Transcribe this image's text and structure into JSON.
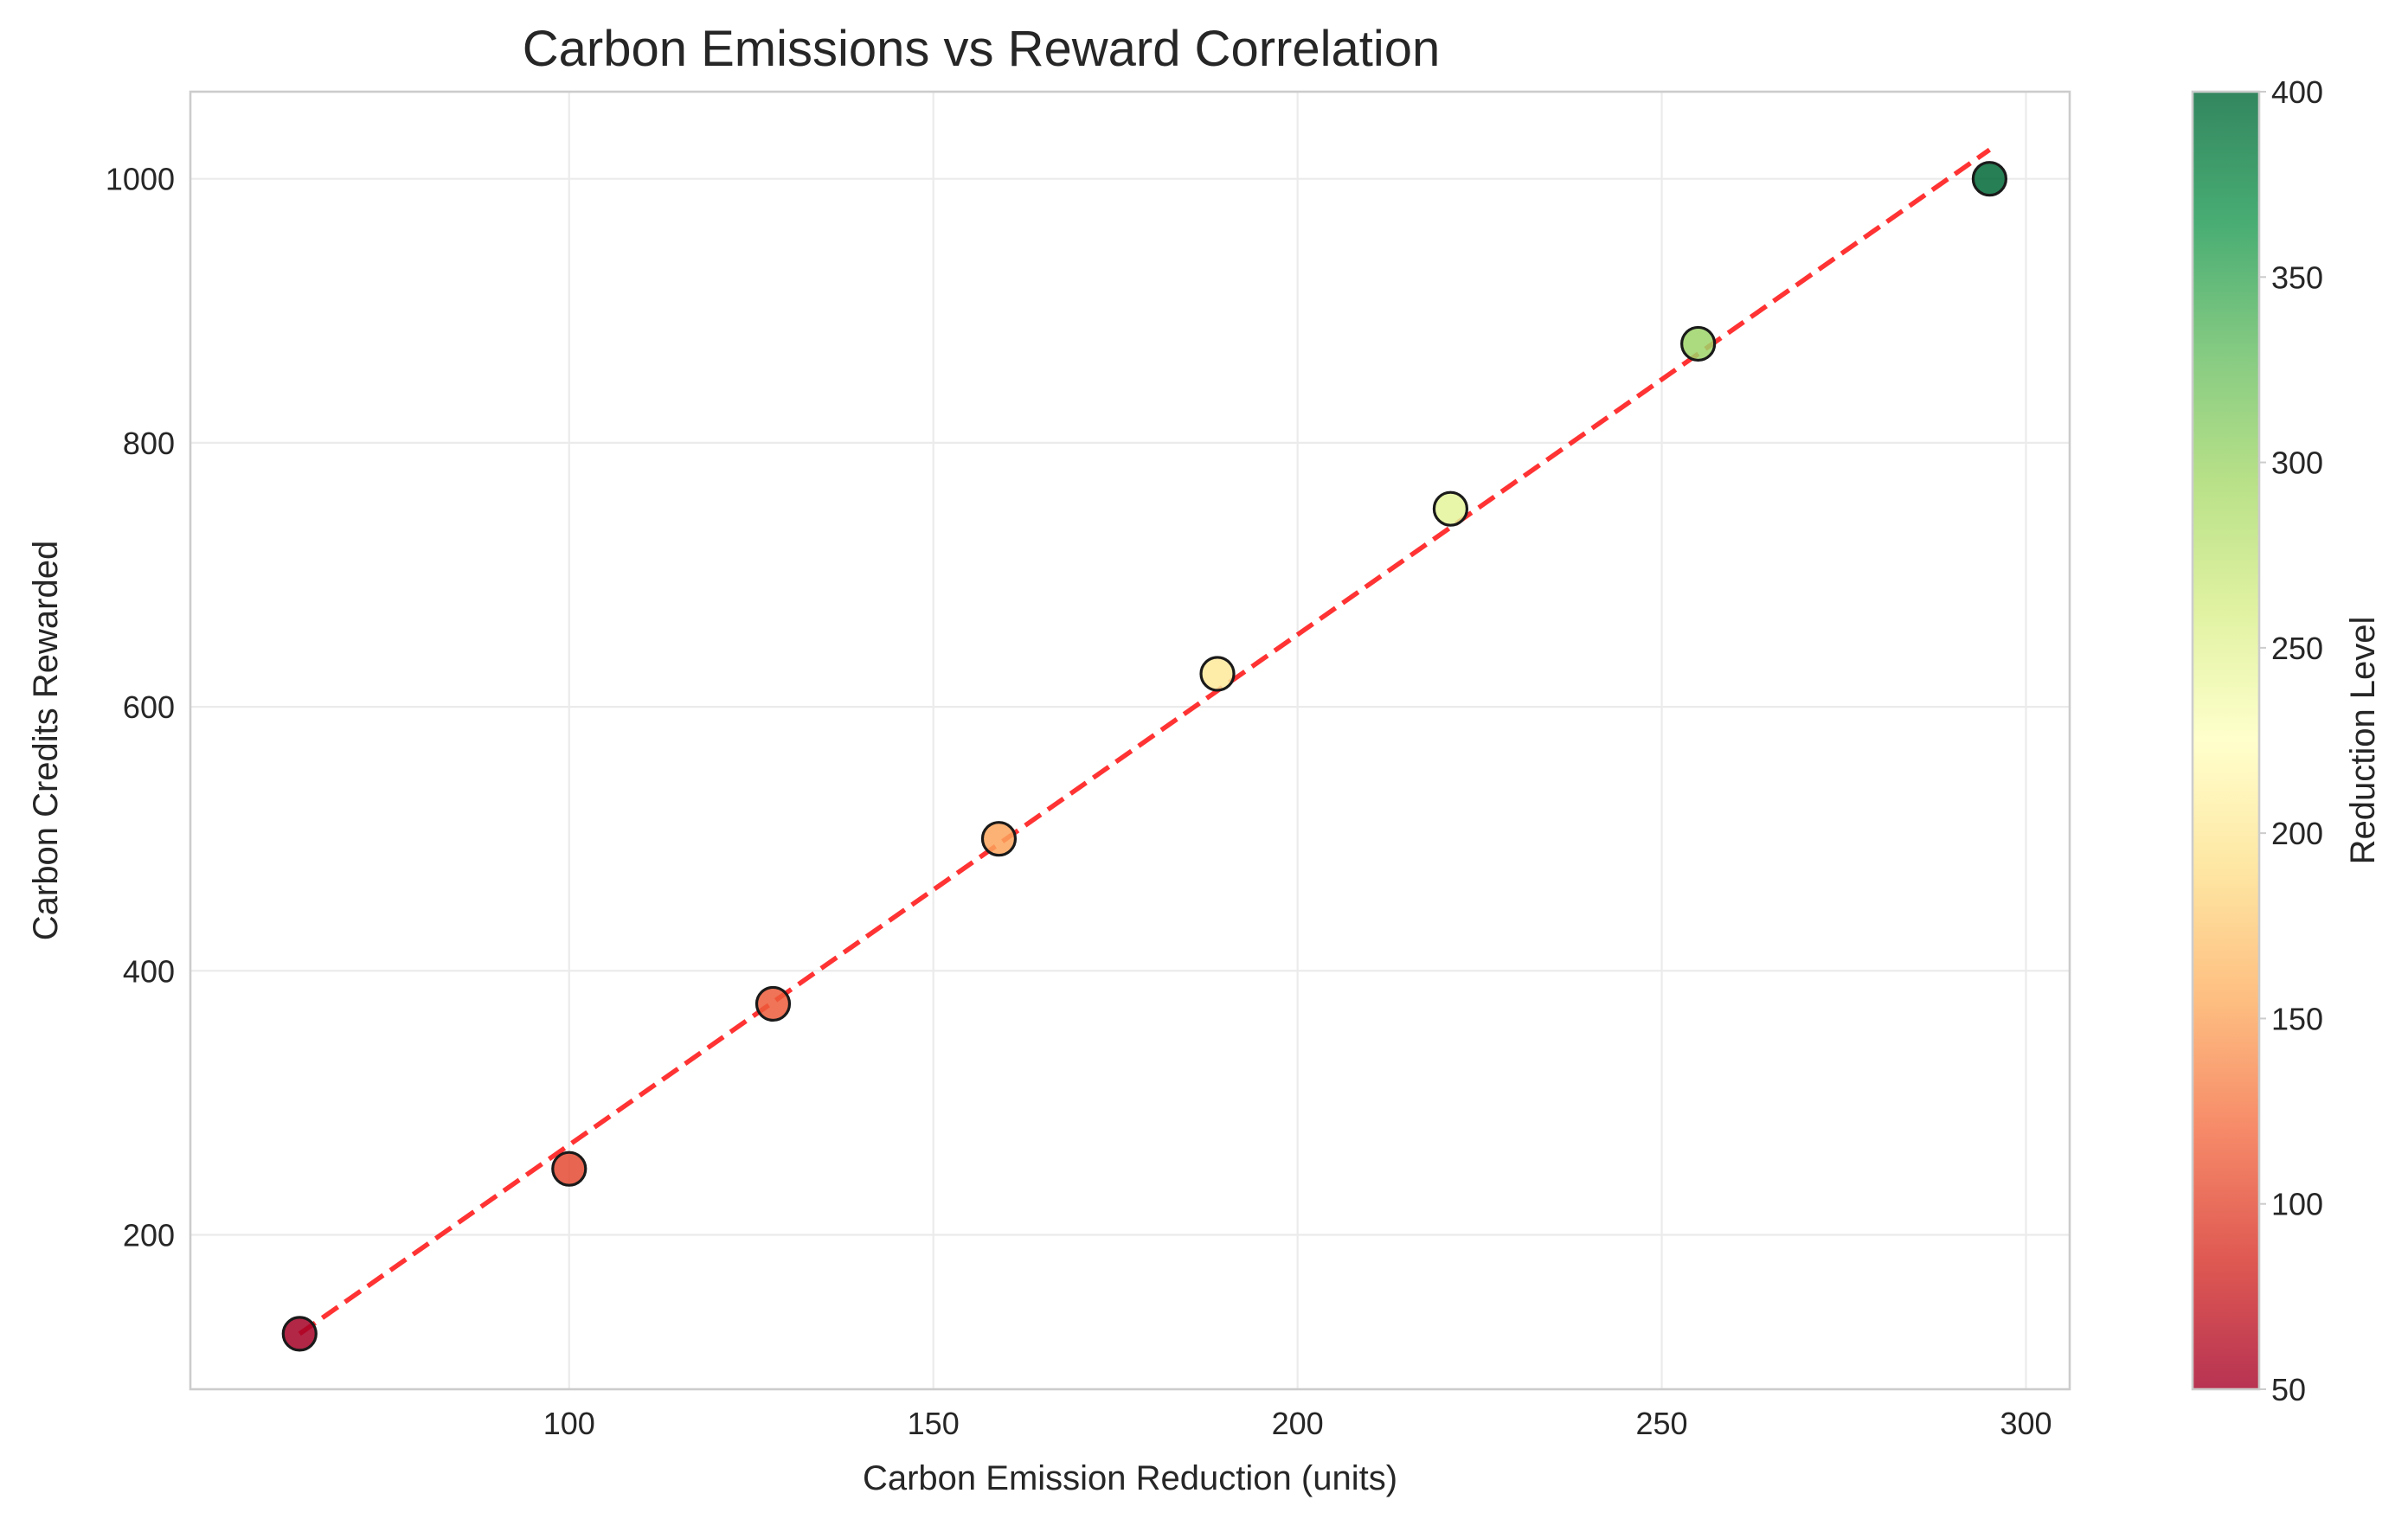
{
  "chart_data": {
    "type": "scatter",
    "title": "Carbon Emissions vs Reward Correlation",
    "xlabel": "Carbon Emission Reduction (units)",
    "ylabel": "Carbon Credits Rewarded",
    "xlim": [
      48,
      306
    ],
    "ylim": [
      83,
      1066
    ],
    "xticks": [
      100,
      150,
      200,
      250,
      300
    ],
    "yticks": [
      200,
      400,
      600,
      800,
      1000
    ],
    "grid": true,
    "points": [
      {
        "x": 63,
        "y": 125,
        "c": 50
      },
      {
        "x": 100,
        "y": 250,
        "c": 100
      },
      {
        "x": 128,
        "y": 375,
        "c": 110
      },
      {
        "x": 159,
        "y": 500,
        "c": 150
      },
      {
        "x": 189,
        "y": 625,
        "c": 200
      },
      {
        "x": 221,
        "y": 750,
        "c": 250
      },
      {
        "x": 255,
        "y": 875,
        "c": 300
      },
      {
        "x": 295,
        "y": 1000,
        "c": 400
      }
    ],
    "trendline": {
      "x": [
        63,
        295
      ],
      "y": [
        125,
        1022
      ],
      "color": "#ff0000",
      "style": "dashed"
    },
    "colorbar": {
      "label": "Reduction Level",
      "range": [
        50,
        400
      ],
      "ticks": [
        50,
        100,
        150,
        200,
        250,
        300,
        350,
        400
      ],
      "colormap": "RdYlGn",
      "stops": [
        "#a50026",
        "#d73027",
        "#f46d43",
        "#fdae61",
        "#fee08b",
        "#ffffbf",
        "#d9ef8b",
        "#a6d96a",
        "#66bd63",
        "#1a9850",
        "#006837"
      ]
    }
  }
}
